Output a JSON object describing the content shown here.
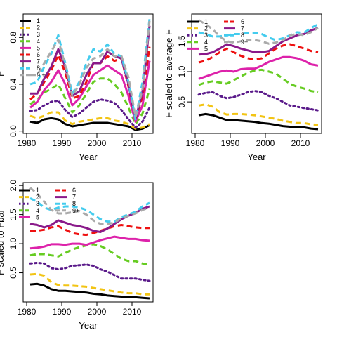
{
  "chart_data": [
    {
      "type": "line",
      "xlabel": "Year",
      "ylabel": "F",
      "xlim": [
        1979,
        2016
      ],
      "ylim": [
        -0.02,
        1.0
      ],
      "xticks": [
        1980,
        1990,
        2000,
        2010
      ],
      "yticks": [
        0.0,
        0.4,
        0.8
      ],
      "legend_position": "top-left",
      "legend_columns": 1,
      "x": [
        1981,
        1983,
        1985,
        1987,
        1989,
        1991,
        1993,
        1995,
        1997,
        1999,
        2001,
        2003,
        2005,
        2007,
        2009,
        2011,
        2013,
        2015
      ],
      "series": [
        {
          "name": "1",
          "color": "#000000",
          "dash": "solid",
          "values": [
            0.08,
            0.07,
            0.1,
            0.11,
            0.1,
            0.06,
            0.04,
            0.05,
            0.06,
            0.07,
            0.07,
            0.07,
            0.06,
            0.05,
            0.04,
            0.01,
            0.02,
            0.05
          ]
        },
        {
          "name": "2",
          "color": "#f2c414",
          "dash": "dashed",
          "values": [
            0.13,
            0.11,
            0.13,
            0.16,
            0.16,
            0.09,
            0.06,
            0.08,
            0.09,
            0.1,
            0.11,
            0.11,
            0.09,
            0.08,
            0.06,
            0.02,
            0.03,
            0.06
          ]
        },
        {
          "name": "3",
          "color": "#5a1a8a",
          "dash": "dotted",
          "values": [
            0.17,
            0.18,
            0.22,
            0.25,
            0.26,
            0.18,
            0.12,
            0.15,
            0.2,
            0.25,
            0.27,
            0.26,
            0.24,
            0.18,
            0.1,
            0.03,
            0.08,
            0.2
          ]
        },
        {
          "name": "4",
          "color": "#66cc22",
          "dash": "dashed",
          "values": [
            0.23,
            0.27,
            0.33,
            0.36,
            0.4,
            0.28,
            0.16,
            0.22,
            0.32,
            0.42,
            0.45,
            0.45,
            0.4,
            0.33,
            0.2,
            0.06,
            0.15,
            0.36
          ]
        },
        {
          "name": "5",
          "color": "#dd22aa",
          "dash": "solid",
          "values": [
            0.2,
            0.25,
            0.35,
            0.42,
            0.52,
            0.4,
            0.22,
            0.28,
            0.38,
            0.48,
            0.52,
            0.56,
            0.52,
            0.48,
            0.3,
            0.08,
            0.22,
            0.6
          ]
        },
        {
          "name": "6",
          "color": "#ee1111",
          "dash": "dashed",
          "values": [
            0.27,
            0.32,
            0.42,
            0.52,
            0.65,
            0.5,
            0.28,
            0.3,
            0.42,
            0.58,
            0.58,
            0.64,
            0.6,
            0.62,
            0.38,
            0.1,
            0.3,
            0.72
          ]
        },
        {
          "name": "7",
          "color": "#8a1a8a",
          "dash": "solid",
          "values": [
            0.32,
            0.32,
            0.45,
            0.55,
            0.7,
            0.55,
            0.3,
            0.34,
            0.48,
            0.58,
            0.58,
            0.68,
            0.64,
            0.62,
            0.4,
            0.1,
            0.34,
            0.9
          ]
        },
        {
          "name": "8",
          "color": "#44ccee",
          "dash": "dashed",
          "values": [
            0.4,
            0.42,
            0.55,
            0.66,
            0.82,
            0.58,
            0.32,
            0.42,
            0.58,
            0.7,
            0.68,
            0.74,
            0.66,
            0.64,
            0.42,
            0.1,
            0.42,
            0.96
          ]
        },
        {
          "name": "9 +",
          "color": "#aaaaaa",
          "dash": "dashed",
          "values": [
            0.48,
            0.48,
            0.58,
            0.68,
            0.78,
            0.56,
            0.3,
            0.4,
            0.54,
            0.62,
            0.64,
            0.7,
            0.64,
            0.64,
            0.46,
            0.12,
            0.36,
            0.94
          ]
        }
      ]
    },
    {
      "type": "line",
      "xlabel": "Year",
      "ylabel": "F scaled to average F",
      "xlim": [
        1979,
        2016
      ],
      "ylim": [
        -0.02,
        1.95
      ],
      "xticks": [
        1980,
        1990,
        2000,
        2010
      ],
      "yticks": [
        0.5,
        1.0,
        1.5
      ],
      "legend_position": "top-left",
      "legend_columns": 2,
      "x": [
        1981,
        1983,
        1985,
        1987,
        1989,
        1991,
        1993,
        1995,
        1997,
        1999,
        2001,
        2003,
        2005,
        2007,
        2009,
        2011,
        2013,
        2015
      ],
      "series": [
        {
          "name": "1",
          "color": "#000000",
          "dash": "solid",
          "values": [
            0.28,
            0.3,
            0.28,
            0.24,
            0.2,
            0.2,
            0.19,
            0.18,
            0.17,
            0.15,
            0.14,
            0.12,
            0.1,
            0.09,
            0.08,
            0.08,
            0.06,
            0.05
          ]
        },
        {
          "name": "2",
          "color": "#f2c414",
          "dash": "dashed",
          "values": [
            0.44,
            0.46,
            0.42,
            0.33,
            0.29,
            0.3,
            0.3,
            0.29,
            0.28,
            0.26,
            0.24,
            0.22,
            0.19,
            0.17,
            0.15,
            0.15,
            0.13,
            0.12
          ]
        },
        {
          "name": "3",
          "color": "#5a1a8a",
          "dash": "dotted",
          "values": [
            0.62,
            0.65,
            0.66,
            0.6,
            0.56,
            0.58,
            0.62,
            0.66,
            0.68,
            0.66,
            0.6,
            0.56,
            0.5,
            0.44,
            0.42,
            0.4,
            0.38,
            0.36
          ]
        },
        {
          "name": "4",
          "color": "#66cc22",
          "dash": "dashed",
          "values": [
            0.78,
            0.82,
            0.84,
            0.82,
            0.8,
            0.86,
            0.92,
            0.98,
            1.02,
            1.03,
            1.0,
            0.97,
            0.88,
            0.8,
            0.75,
            0.72,
            0.68,
            0.66
          ]
        },
        {
          "name": "5",
          "color": "#dd22aa",
          "dash": "solid",
          "values": [
            0.88,
            0.92,
            0.96,
            1.0,
            1.02,
            1.0,
            1.04,
            1.05,
            1.05,
            1.1,
            1.16,
            1.2,
            1.24,
            1.24,
            1.22,
            1.18,
            1.12,
            1.1
          ]
        },
        {
          "name": "6",
          "color": "#ee1111",
          "dash": "dashed",
          "values": [
            1.15,
            1.18,
            1.24,
            1.32,
            1.38,
            1.32,
            1.26,
            1.22,
            1.2,
            1.22,
            1.3,
            1.38,
            1.43,
            1.45,
            1.42,
            1.38,
            1.34,
            1.32
          ]
        },
        {
          "name": "7",
          "color": "#8a1a8a",
          "dash": "solid",
          "values": [
            1.28,
            1.29,
            1.32,
            1.38,
            1.45,
            1.42,
            1.38,
            1.35,
            1.32,
            1.32,
            1.34,
            1.42,
            1.5,
            1.55,
            1.6,
            1.62,
            1.68,
            1.72
          ]
        },
        {
          "name": "8",
          "color": "#44ccee",
          "dash": "dashed",
          "values": [
            1.65,
            1.62,
            1.58,
            1.58,
            1.6,
            1.62,
            1.62,
            1.64,
            1.64,
            1.62,
            1.56,
            1.52,
            1.55,
            1.6,
            1.65,
            1.64,
            1.72,
            1.78
          ]
        },
        {
          "name": "9+",
          "color": "#aaaaaa",
          "dash": "dashed",
          "values": [
            1.85,
            1.78,
            1.7,
            1.58,
            1.5,
            1.48,
            1.5,
            1.52,
            1.52,
            1.5,
            1.46,
            1.48,
            1.52,
            1.6,
            1.62,
            1.6,
            1.65,
            1.72
          ]
        }
      ]
    },
    {
      "type": "line",
      "xlabel": "Year",
      "ylabel": "F scaled to Fbar",
      "xlim": [
        1979,
        2016
      ],
      "ylim": [
        0.0,
        2.05
      ],
      "xticks": [
        1980,
        1990,
        2000,
        2010
      ],
      "yticks": [
        0.5,
        1.0,
        1.5,
        2.0
      ],
      "legend_position": "top-left",
      "legend_columns": 2,
      "x": [
        1981,
        1983,
        1985,
        1987,
        1989,
        1991,
        1993,
        1995,
        1997,
        1999,
        2001,
        2003,
        2005,
        2007,
        2009,
        2011,
        2013,
        2015
      ],
      "series": [
        {
          "name": "1",
          "color": "#000000",
          "dash": "solid",
          "values": [
            0.3,
            0.31,
            0.28,
            0.22,
            0.19,
            0.19,
            0.18,
            0.17,
            0.16,
            0.14,
            0.13,
            0.11,
            0.1,
            0.09,
            0.08,
            0.08,
            0.07,
            0.06
          ]
        },
        {
          "name": "2",
          "color": "#f2c414",
          "dash": "dashed",
          "values": [
            0.47,
            0.48,
            0.45,
            0.34,
            0.29,
            0.28,
            0.28,
            0.27,
            0.26,
            0.24,
            0.22,
            0.2,
            0.18,
            0.16,
            0.15,
            0.15,
            0.13,
            0.13
          ]
        },
        {
          "name": "3",
          "color": "#5a1a8a",
          "dash": "dotted",
          "values": [
            0.66,
            0.67,
            0.66,
            0.58,
            0.56,
            0.58,
            0.62,
            0.63,
            0.64,
            0.62,
            0.56,
            0.52,
            0.46,
            0.4,
            0.4,
            0.4,
            0.38,
            0.36
          ]
        },
        {
          "name": "4",
          "color": "#66cc22",
          "dash": "dashed",
          "values": [
            0.8,
            0.82,
            0.82,
            0.8,
            0.78,
            0.84,
            0.9,
            0.94,
            0.97,
            0.99,
            0.96,
            0.9,
            0.82,
            0.74,
            0.7,
            0.7,
            0.66,
            0.64
          ]
        },
        {
          "name": "5",
          "color": "#dd22aa",
          "dash": "solid",
          "values": [
            0.92,
            0.93,
            0.95,
            0.99,
            0.99,
            0.98,
            1.0,
            1.0,
            0.98,
            1.02,
            1.06,
            1.09,
            1.12,
            1.1,
            1.08,
            1.08,
            1.06,
            1.05
          ]
        },
        {
          "name": "6",
          "color": "#ee1111",
          "dash": "dashed",
          "values": [
            1.22,
            1.22,
            1.24,
            1.28,
            1.3,
            1.24,
            1.18,
            1.16,
            1.15,
            1.18,
            1.22,
            1.26,
            1.3,
            1.32,
            1.3,
            1.28,
            1.27,
            1.27
          ]
        },
        {
          "name": "7",
          "color": "#8a1a8a",
          "dash": "solid",
          "values": [
            1.34,
            1.32,
            1.28,
            1.32,
            1.4,
            1.36,
            1.32,
            1.3,
            1.27,
            1.22,
            1.2,
            1.26,
            1.34,
            1.42,
            1.48,
            1.53,
            1.6,
            1.64
          ]
        },
        {
          "name": "8",
          "color": "#44ccee",
          "dash": "dashed",
          "values": [
            1.78,
            1.72,
            1.62,
            1.58,
            1.62,
            1.64,
            1.64,
            1.62,
            1.58,
            1.5,
            1.42,
            1.38,
            1.38,
            1.46,
            1.5,
            1.55,
            1.64,
            1.7
          ]
        },
        {
          "name": "9+",
          "color": "#aaaaaa",
          "dash": "dashed",
          "values": [
            1.96,
            1.86,
            1.72,
            1.58,
            1.52,
            1.52,
            1.54,
            1.56,
            1.5,
            1.4,
            1.34,
            1.34,
            1.36,
            1.44,
            1.48,
            1.52,
            1.58,
            1.62
          ]
        }
      ]
    }
  ]
}
